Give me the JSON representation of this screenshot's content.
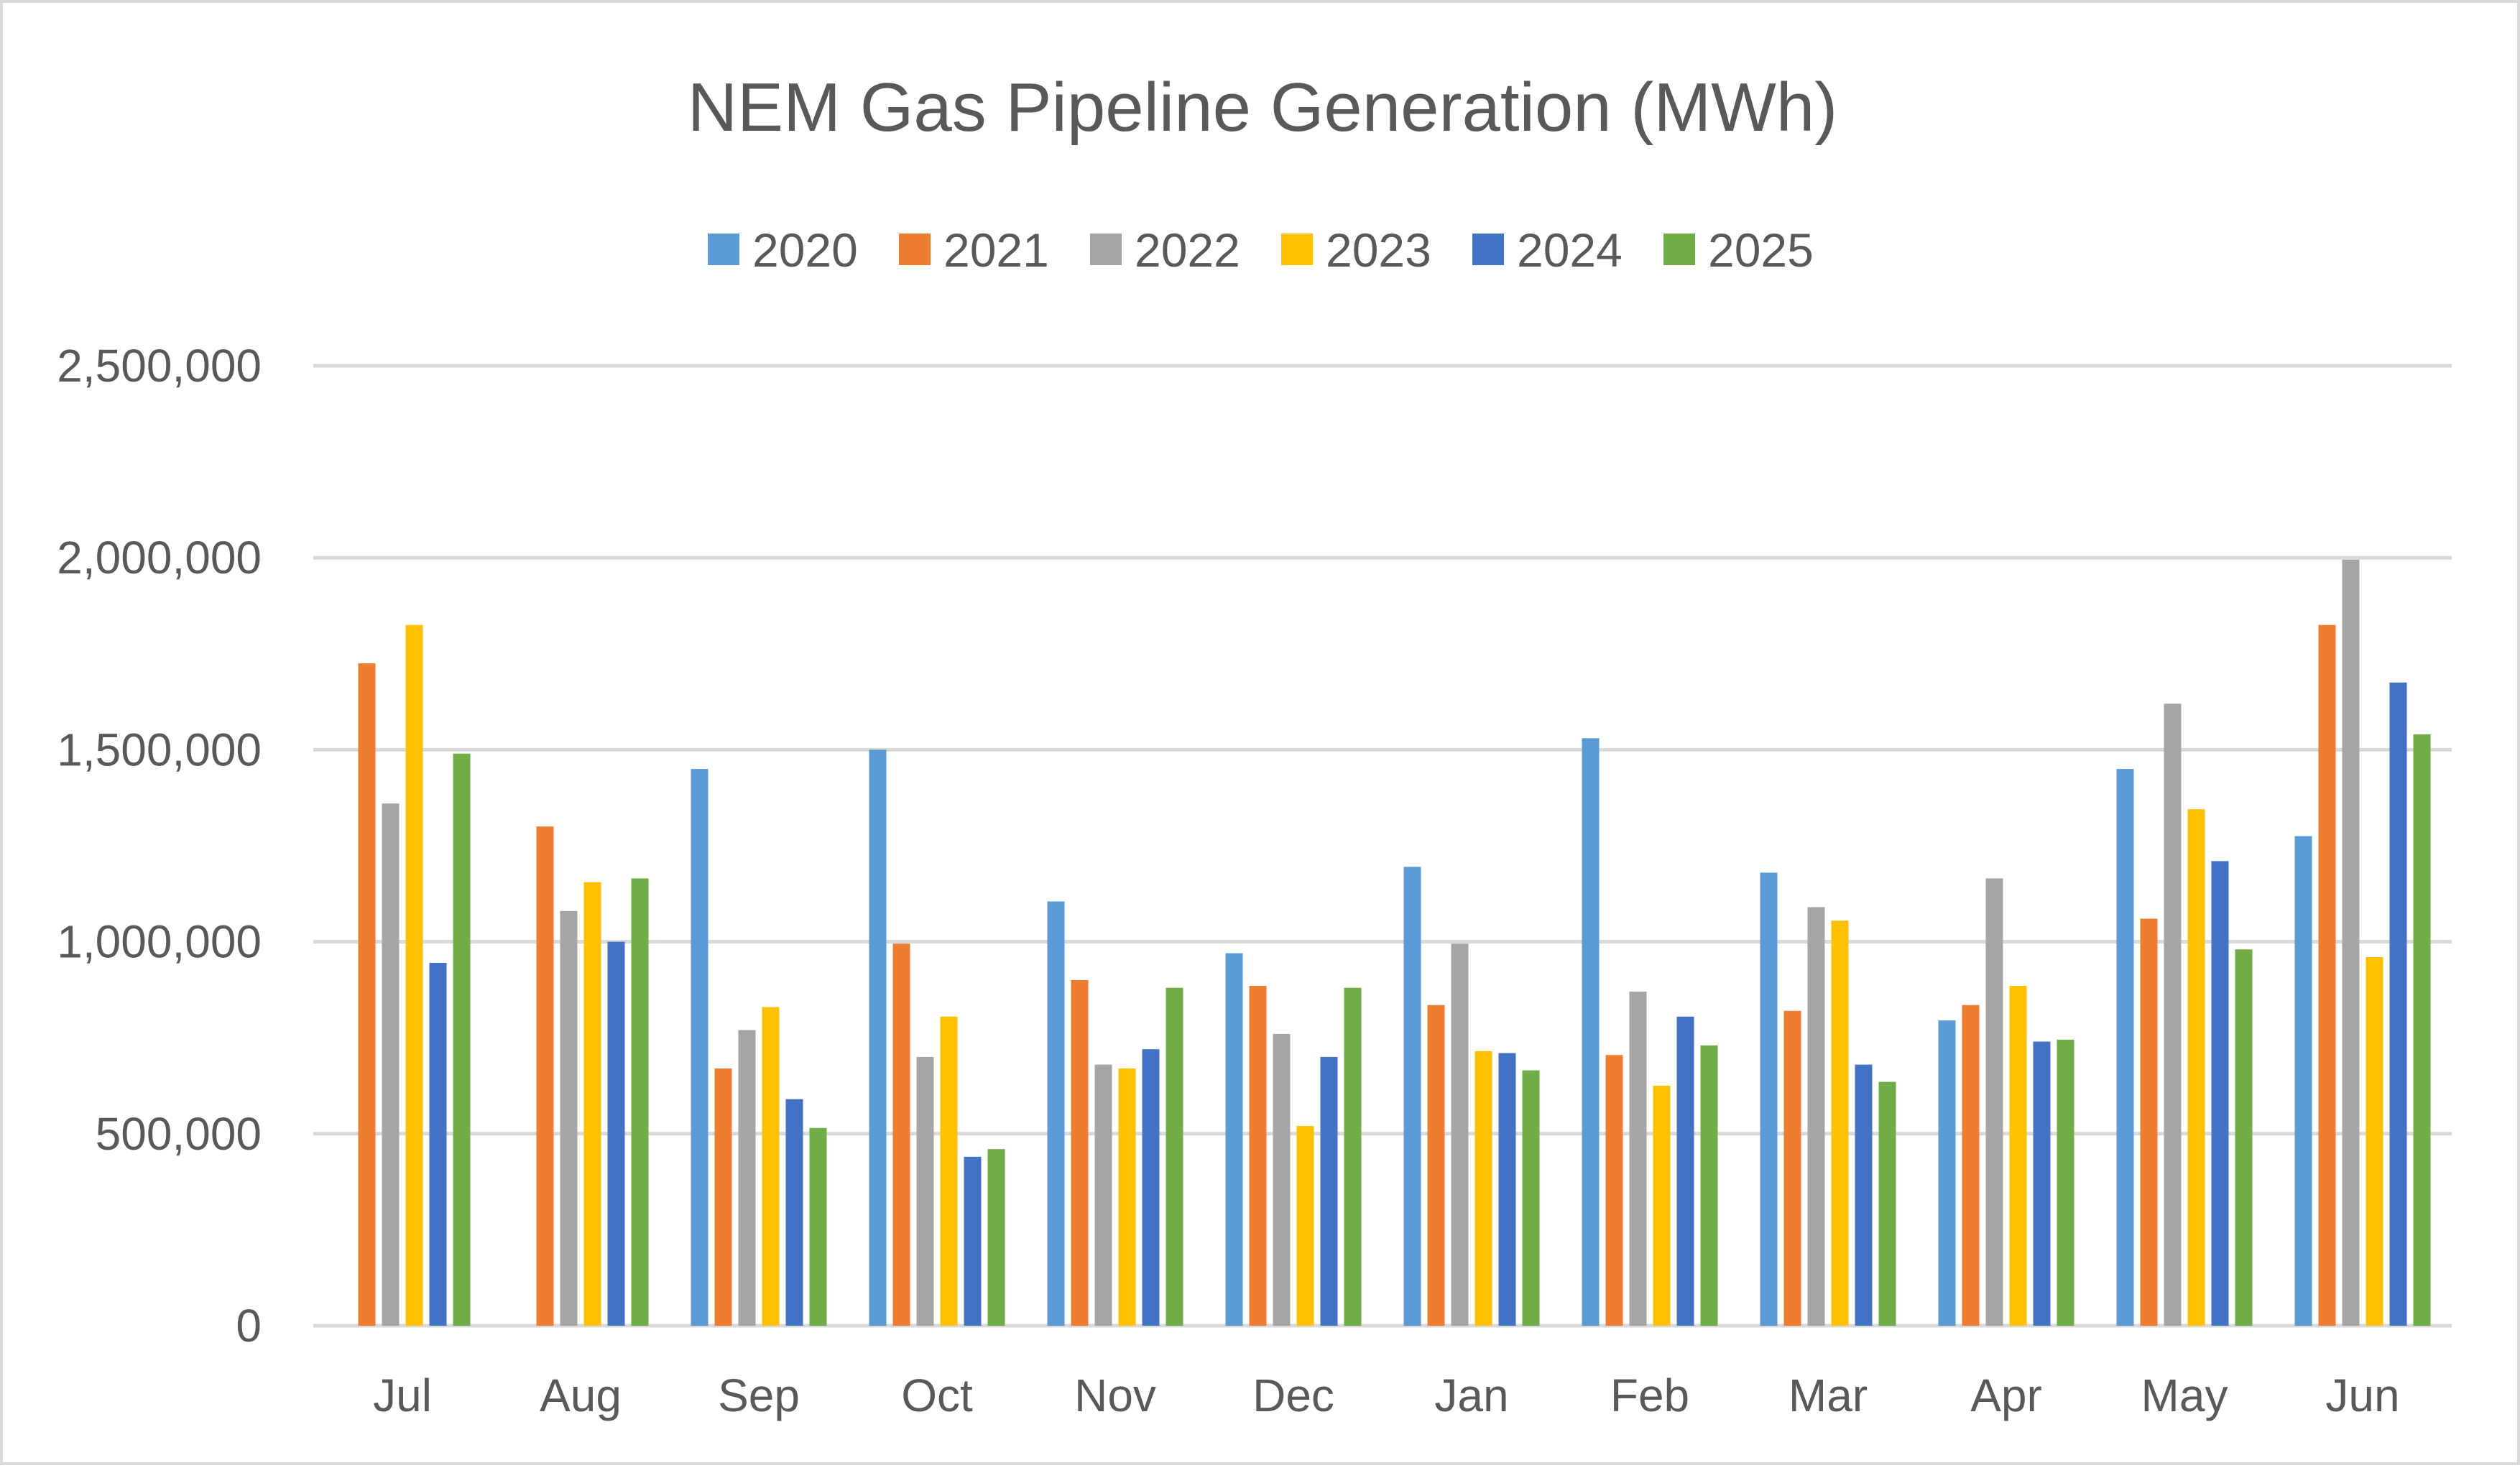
{
  "chart_data": {
    "type": "bar",
    "title": "NEM Gas Pipeline Generation (MWh)",
    "xlabel": "",
    "ylabel": "",
    "categories": [
      "Jul",
      "Aug",
      "Sep",
      "Oct",
      "Nov",
      "Dec",
      "Jan",
      "Feb",
      "Mar",
      "Apr",
      "May",
      "Jun"
    ],
    "ylim": [
      0,
      2500000
    ],
    "yticks": [
      0,
      500000,
      1000000,
      1500000,
      2000000,
      2500000
    ],
    "ytick_labels": [
      "0",
      "500,000",
      "1,000,000",
      "1,500,000",
      "2,000,000",
      "2,500,000"
    ],
    "grid": true,
    "legend_position": "top",
    "series": [
      {
        "name": "2020",
        "color": "#5b9bd5",
        "values": [
          null,
          null,
          1450000,
          1500000,
          1105000,
          970000,
          1195000,
          1530000,
          1180000,
          795000,
          1450000,
          1275000
        ]
      },
      {
        "name": "2021",
        "color": "#ed7d31",
        "values": [
          1725000,
          1300000,
          670000,
          995000,
          900000,
          885000,
          835000,
          705000,
          820000,
          835000,
          1060000,
          1825000
        ]
      },
      {
        "name": "2022",
        "color": "#a5a5a5",
        "values": [
          1360000,
          1080000,
          770000,
          700000,
          680000,
          760000,
          995000,
          870000,
          1090000,
          1165000,
          1620000,
          1995000
        ]
      },
      {
        "name": "2023",
        "color": "#ffc000",
        "values": [
          1825000,
          1155000,
          830000,
          805000,
          670000,
          520000,
          715000,
          625000,
          1055000,
          885000,
          1345000,
          960000
        ]
      },
      {
        "name": "2024",
        "color": "#4472c4",
        "values": [
          945000,
          1000000,
          590000,
          440000,
          720000,
          700000,
          710000,
          805000,
          680000,
          740000,
          1210000,
          1675000
        ]
      },
      {
        "name": "2025",
        "color": "#70ad47",
        "values": [
          1490000,
          1165000,
          515000,
          460000,
          880000,
          880000,
          665000,
          730000,
          635000,
          745000,
          980000,
          1540000
        ]
      }
    ]
  }
}
